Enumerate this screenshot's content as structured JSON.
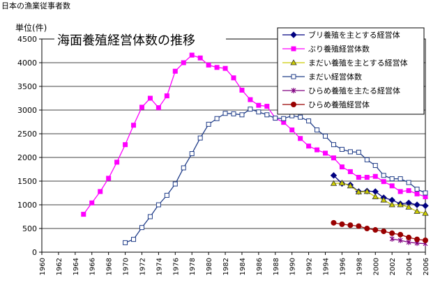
{
  "page": {
    "heading": "日本の漁業従事者数"
  },
  "chart_data": {
    "type": "line",
    "title": "海面養殖経営体数の推移",
    "ylabel": "単位(件)",
    "xlabel": "",
    "ylim": [
      0,
      4500
    ],
    "xlim": [
      1960,
      2006
    ],
    "yticks": [
      0,
      500,
      1000,
      1500,
      2000,
      2500,
      3000,
      3500,
      4000,
      4500
    ],
    "xticks": [
      1960,
      1962,
      1964,
      1966,
      1968,
      1970,
      1972,
      1974,
      1976,
      1978,
      1980,
      1982,
      1984,
      1986,
      1988,
      1990,
      1992,
      1994,
      1996,
      1998,
      2000,
      2002,
      2004,
      2006
    ],
    "grid": true,
    "legend_position": "top-right",
    "series": [
      {
        "name": "ブリ養殖を主とする経営体",
        "color": "#000080",
        "marker": "diamond",
        "x": [
          1995,
          1996,
          1997,
          1998,
          1999,
          2000,
          2001,
          2002,
          2003,
          2004,
          2005,
          2006
        ],
        "values": [
          1620,
          1450,
          1420,
          1280,
          1290,
          1280,
          1150,
          1100,
          1020,
          1040,
          1000,
          980
        ]
      },
      {
        "name": "ぶり養殖経営体数",
        "color": "#ff00ff",
        "marker": "square",
        "x": [
          1965,
          1966,
          1967,
          1968,
          1969,
          1970,
          1971,
          1972,
          1973,
          1974,
          1975,
          1976,
          1977,
          1978,
          1979,
          1980,
          1981,
          1982,
          1983,
          1984,
          1985,
          1986,
          1987,
          1988,
          1989,
          1990,
          1991,
          1992,
          1993,
          1994,
          1995,
          1996,
          1997,
          1998,
          1999,
          2000,
          2001,
          2002,
          2003,
          2004,
          2005,
          2006
        ],
        "values": [
          800,
          1040,
          1280,
          1560,
          1900,
          2270,
          2680,
          3060,
          3250,
          3050,
          3300,
          3820,
          4000,
          4160,
          4100,
          3950,
          3900,
          3880,
          3680,
          3420,
          3220,
          3100,
          3080,
          2830,
          2740,
          2580,
          2400,
          2240,
          2160,
          2090,
          1990,
          1800,
          1700,
          1580,
          1580,
          1600,
          1490,
          1400,
          1280,
          1300,
          1230,
          1170
        ]
      },
      {
        "name": "まだい養殖を主とする経営体",
        "color": "#cccc00",
        "marker": "triangle",
        "x": [
          1995,
          1996,
          1997,
          1998,
          1999,
          2000,
          2001,
          2002,
          2003,
          2004,
          2005,
          2006
        ],
        "values": [
          1450,
          1460,
          1400,
          1270,
          1280,
          1170,
          1100,
          1000,
          1000,
          950,
          860,
          820
        ]
      },
      {
        "name": "まだい経営体数",
        "color": "#1f3c88",
        "marker": "hollow-square",
        "x": [
          1970,
          1971,
          1972,
          1973,
          1974,
          1975,
          1976,
          1977,
          1978,
          1979,
          1980,
          1981,
          1982,
          1983,
          1984,
          1985,
          1986,
          1987,
          1988,
          1989,
          1990,
          1991,
          1992,
          1993,
          1994,
          1995,
          1996,
          1997,
          1998,
          1999,
          2000,
          2001,
          2002,
          2003,
          2004,
          2005,
          2006
        ],
        "values": [
          200,
          270,
          520,
          750,
          1000,
          1200,
          1440,
          1780,
          2080,
          2410,
          2700,
          2820,
          2930,
          2920,
          2900,
          3020,
          2960,
          2900,
          2830,
          2820,
          2880,
          2850,
          2770,
          2580,
          2450,
          2270,
          2170,
          2120,
          2110,
          1950,
          1830,
          1620,
          1550,
          1550,
          1470,
          1330,
          1250
        ]
      },
      {
        "name": "ひらめ養殖を主たる経営体",
        "color": "#800080",
        "marker": "star",
        "x": [
          2002,
          2003,
          2004,
          2005,
          2006
        ],
        "values": [
          280,
          250,
          210,
          190,
          180
        ]
      },
      {
        "name": "ひらめ養殖経営体",
        "color": "#990000",
        "marker": "circle",
        "x": [
          1995,
          1996,
          1997,
          1998,
          1999,
          2000,
          2001,
          2002,
          2003,
          2004,
          2005,
          2006
        ],
        "values": [
          620,
          590,
          570,
          550,
          500,
          470,
          440,
          400,
          370,
          310,
          270,
          250
        ]
      }
    ]
  }
}
